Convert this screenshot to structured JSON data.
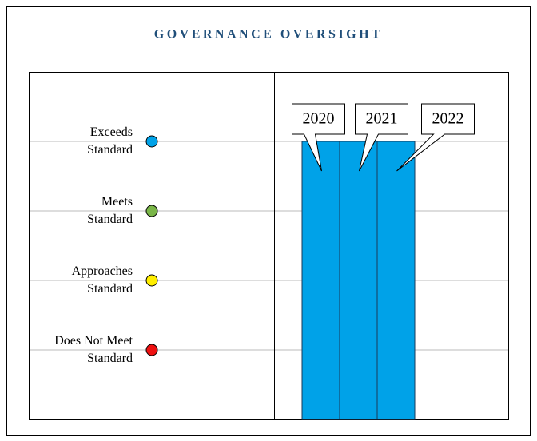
{
  "chart_data": {
    "type": "bar",
    "title": "GOVERNANCE OVERSIGHT",
    "categories": [
      "2020",
      "2021",
      "2022"
    ],
    "values": [
      4,
      4,
      4
    ],
    "color": "#00a2e8",
    "ylim": [
      0,
      5
    ],
    "yticks": [
      {
        "value": 4,
        "label": "Exceeds Standard",
        "color": "#00a2e8"
      },
      {
        "value": 3,
        "label": "Meets Standard",
        "color": "#7ab648"
      },
      {
        "value": 2,
        "label": "Approaches Standard",
        "color": "#ffee00"
      },
      {
        "value": 1,
        "label": "Does Not Meet Standard",
        "color": "#ee1111"
      }
    ],
    "grid": true
  }
}
